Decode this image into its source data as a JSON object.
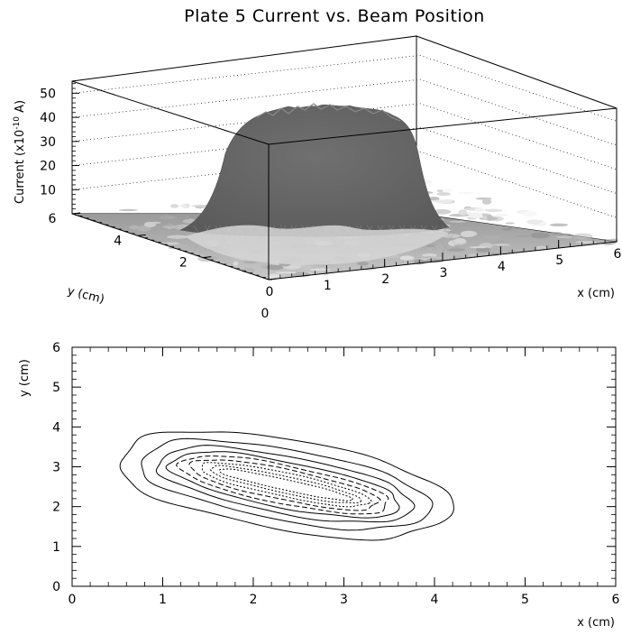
{
  "title": "Plate 5 Current vs. Beam Position",
  "chart_data": [
    {
      "type": "surface",
      "title": "Plate 5 Current vs. Beam Position",
      "xlabel": "x (cm)",
      "ylabel": "y (cm)",
      "zlabel": "Current (x10",
      "zlabel_exp": "-10",
      "zlabel_unit": " A)",
      "xlim": [
        0,
        6
      ],
      "ylim": [
        0,
        6
      ],
      "zlim": [
        0,
        55
      ],
      "x_ticks": [
        "0",
        "1",
        "2",
        "3",
        "4",
        "5",
        "6"
      ],
      "y_ticks": [
        "0",
        "2",
        "4",
        "6"
      ],
      "z_ticks": [
        "10",
        "20",
        "30",
        "40",
        "50"
      ],
      "surface": {
        "description_values": "plateau of ~38-44 (x10^-10 A) over an elongated region, baseline ~0",
        "plateau_peak": 44,
        "baseline": 0
      }
    },
    {
      "type": "contour",
      "xlabel": "x (cm)",
      "ylabel": "y (cm)",
      "xlim": [
        0,
        6
      ],
      "ylim": [
        0,
        6
      ],
      "x_ticks": [
        "0",
        "1",
        "2",
        "3",
        "4",
        "5",
        "6"
      ],
      "y_ticks": [
        "0",
        "1",
        "2",
        "3",
        "4",
        "5",
        "6"
      ],
      "center": [
        2.35,
        2.55
      ],
      "angle_deg": -27,
      "levels": [
        {
          "a": 1.95,
          "b": 1.05,
          "style": "solid"
        },
        {
          "a": 1.72,
          "b": 0.82,
          "style": "solid"
        },
        {
          "a": 1.52,
          "b": 0.66,
          "style": "solid"
        },
        {
          "a": 1.38,
          "b": 0.53,
          "style": "solid"
        },
        {
          "a": 1.26,
          "b": 0.44,
          "style": "dashed"
        },
        {
          "a": 1.14,
          "b": 0.35,
          "style": "dashed"
        },
        {
          "a": 1.03,
          "b": 0.27,
          "style": "dotted"
        },
        {
          "a": 0.92,
          "b": 0.19,
          "style": "dotted"
        },
        {
          "a": 0.82,
          "b": 0.12,
          "style": "dotted"
        }
      ]
    }
  ]
}
